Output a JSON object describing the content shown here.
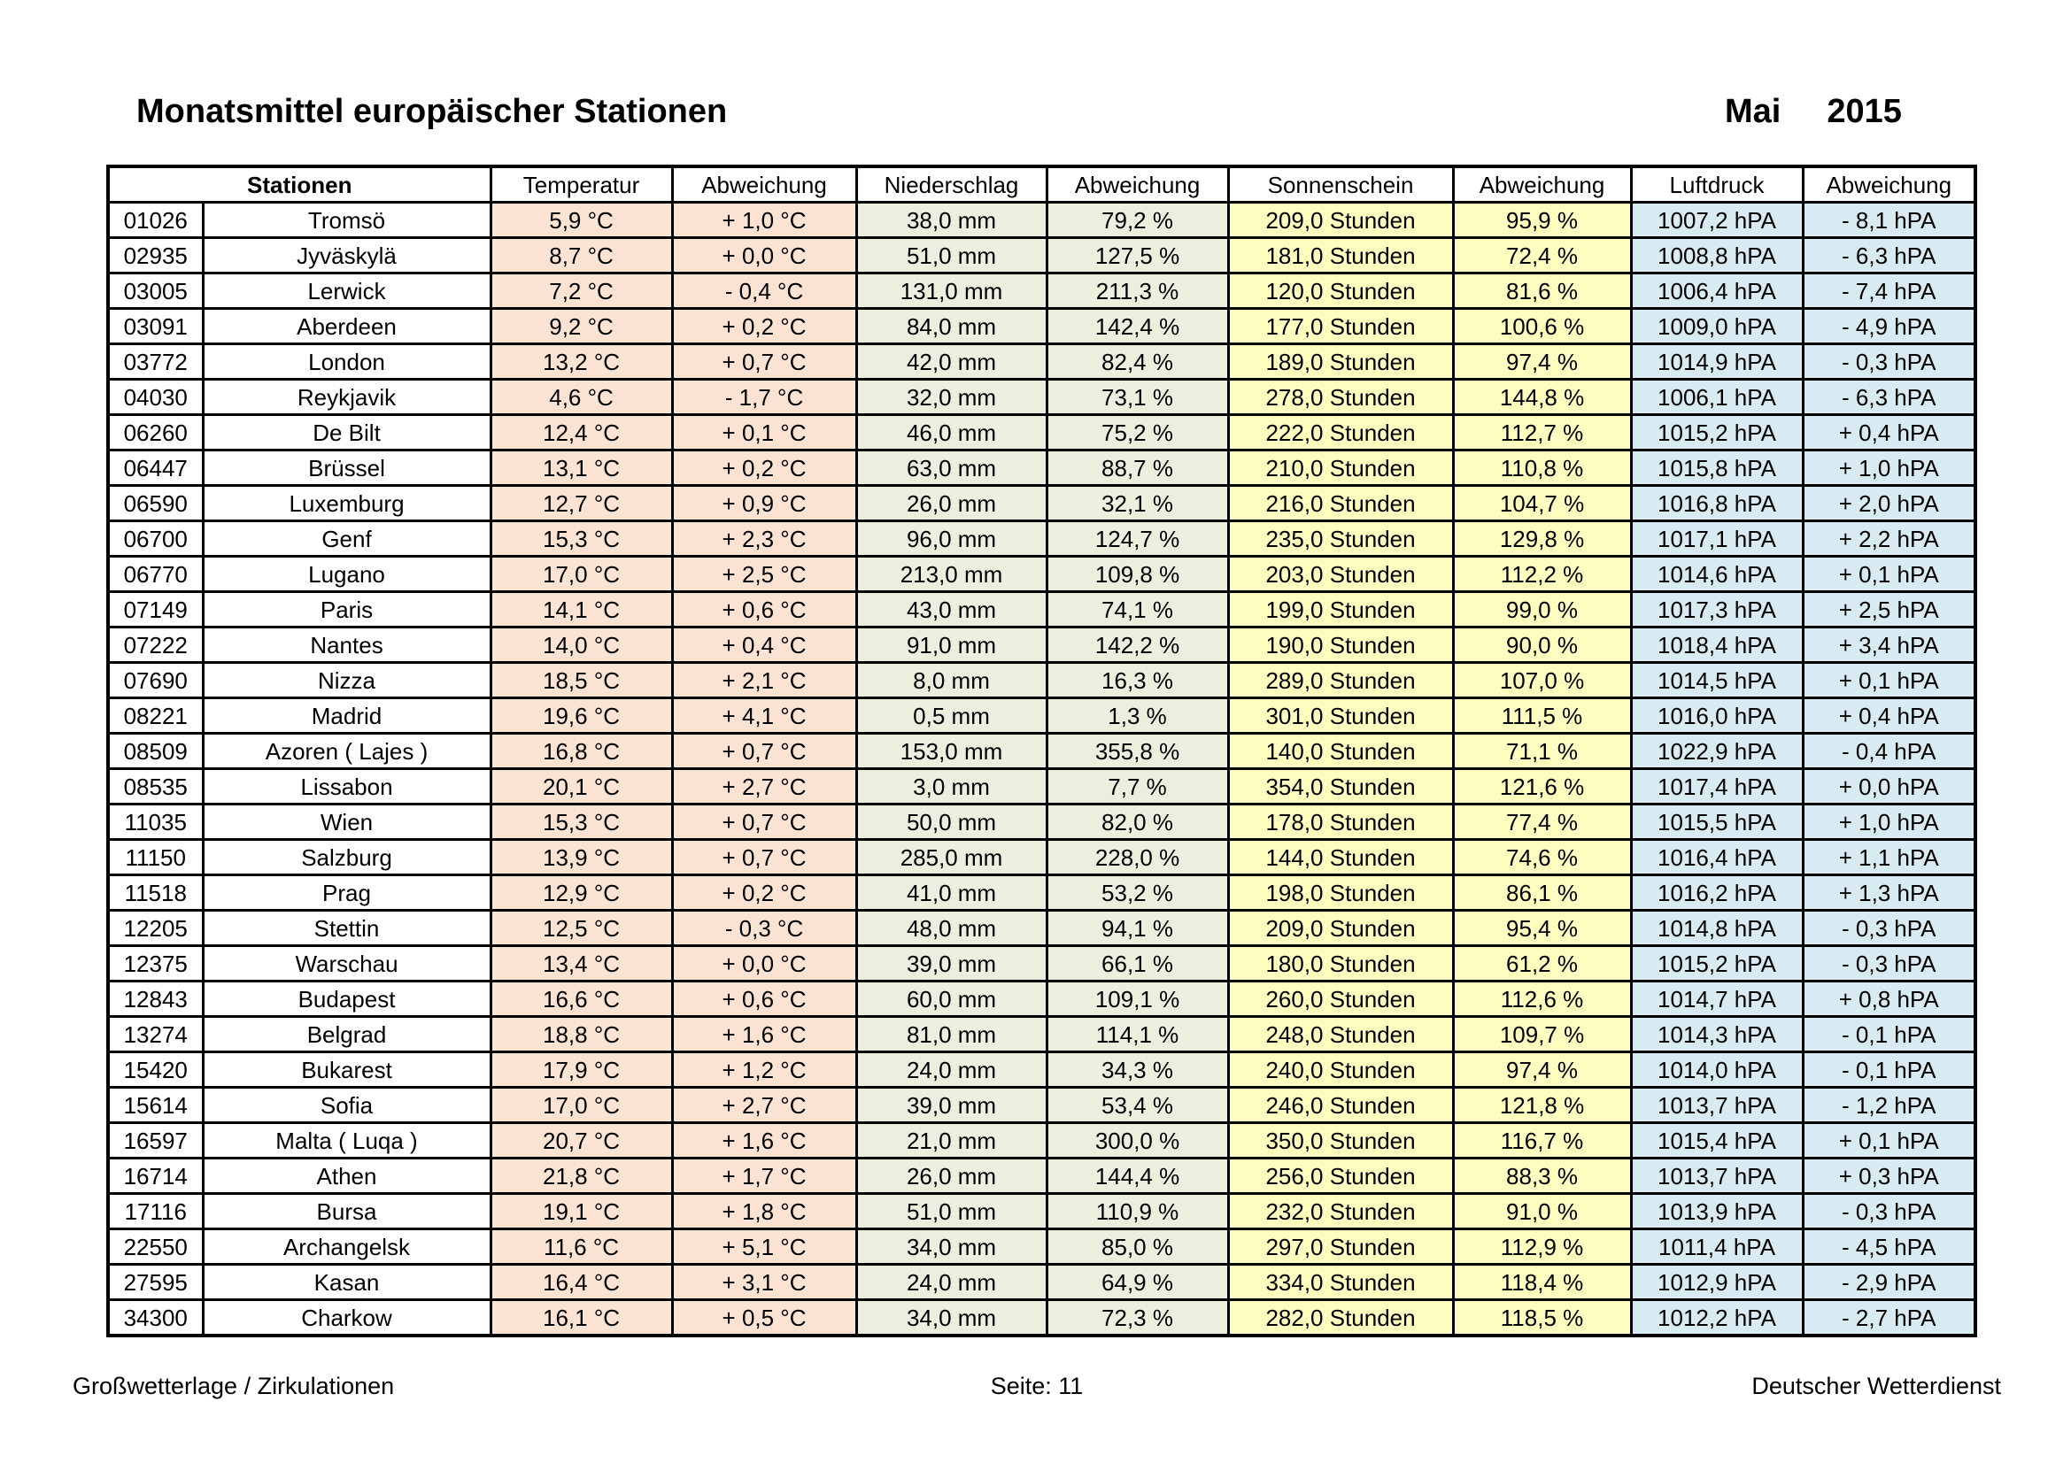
{
  "page": {
    "title": "Monatsmittel europäischer Stationen",
    "period": {
      "month": "Mai",
      "year": "2015"
    },
    "footer": {
      "left": "Großwetterlage / Zirkulationen",
      "center": "Seite: 11",
      "right": "Deutscher Wetterdienst"
    }
  },
  "table": {
    "headers": {
      "stations": "Stationen",
      "temperature": "Temperatur",
      "temperature_deviation": "Abweichung",
      "precipitation": "Niederschlag",
      "precipitation_deviation": "Abweichung",
      "sunshine": "Sonnenschein",
      "sunshine_deviation": "Abweichung",
      "pressure": "Luftdruck",
      "pressure_deviation": "Abweichung"
    },
    "colors": {
      "temperature_bg": "#fae3d3",
      "precipitation_bg": "#eaefde",
      "sunshine_bg": "#fdfdc0",
      "pressure_bg": "#d8eaf2"
    },
    "rows": [
      [
        "01026",
        "Tromsö",
        "5,9 °C",
        "+ 1,0 °C",
        "38,0 mm",
        "79,2 %",
        "209,0 Stunden",
        "95,9 %",
        "1007,2 hPA",
        "- 8,1 hPA"
      ],
      [
        "02935",
        "Jyväskylä",
        "8,7 °C",
        "+ 0,0 °C",
        "51,0 mm",
        "127,5 %",
        "181,0 Stunden",
        "72,4 %",
        "1008,8 hPA",
        "- 6,3 hPA"
      ],
      [
        "03005",
        "Lerwick",
        "7,2 °C",
        "- 0,4 °C",
        "131,0 mm",
        "211,3 %",
        "120,0 Stunden",
        "81,6 %",
        "1006,4 hPA",
        "- 7,4 hPA"
      ],
      [
        "03091",
        "Aberdeen",
        "9,2 °C",
        "+ 0,2 °C",
        "84,0 mm",
        "142,4 %",
        "177,0 Stunden",
        "100,6 %",
        "1009,0 hPA",
        "- 4,9 hPA"
      ],
      [
        "03772",
        "London",
        "13,2 °C",
        "+ 0,7 °C",
        "42,0 mm",
        "82,4 %",
        "189,0 Stunden",
        "97,4 %",
        "1014,9 hPA",
        "- 0,3 hPA"
      ],
      [
        "04030",
        "Reykjavik",
        "4,6 °C",
        "- 1,7 °C",
        "32,0 mm",
        "73,1 %",
        "278,0 Stunden",
        "144,8 %",
        "1006,1 hPA",
        "- 6,3 hPA"
      ],
      [
        "06260",
        "De Bilt",
        "12,4 °C",
        "+ 0,1 °C",
        "46,0 mm",
        "75,2 %",
        "222,0 Stunden",
        "112,7 %",
        "1015,2 hPA",
        "+ 0,4 hPA"
      ],
      [
        "06447",
        "Brüssel",
        "13,1 °C",
        "+ 0,2 °C",
        "63,0 mm",
        "88,7 %",
        "210,0 Stunden",
        "110,8 %",
        "1015,8 hPA",
        "+ 1,0 hPA"
      ],
      [
        "06590",
        "Luxemburg",
        "12,7 °C",
        "+ 0,9 °C",
        "26,0 mm",
        "32,1 %",
        "216,0 Stunden",
        "104,7 %",
        "1016,8 hPA",
        "+ 2,0 hPA"
      ],
      [
        "06700",
        "Genf",
        "15,3 °C",
        "+ 2,3 °C",
        "96,0 mm",
        "124,7 %",
        "235,0 Stunden",
        "129,8 %",
        "1017,1 hPA",
        "+ 2,2 hPA"
      ],
      [
        "06770",
        "Lugano",
        "17,0 °C",
        "+ 2,5 °C",
        "213,0 mm",
        "109,8 %",
        "203,0 Stunden",
        "112,2 %",
        "1014,6 hPA",
        "+ 0,1 hPA"
      ],
      [
        "07149",
        "Paris",
        "14,1 °C",
        "+ 0,6 °C",
        "43,0 mm",
        "74,1 %",
        "199,0 Stunden",
        "99,0 %",
        "1017,3 hPA",
        "+ 2,5 hPA"
      ],
      [
        "07222",
        "Nantes",
        "14,0 °C",
        "+ 0,4 °C",
        "91,0 mm",
        "142,2 %",
        "190,0 Stunden",
        "90,0 %",
        "1018,4 hPA",
        "+ 3,4 hPA"
      ],
      [
        "07690",
        "Nizza",
        "18,5 °C",
        "+ 2,1 °C",
        "8,0 mm",
        "16,3 %",
        "289,0 Stunden",
        "107,0 %",
        "1014,5 hPA",
        "+ 0,1 hPA"
      ],
      [
        "08221",
        "Madrid",
        "19,6 °C",
        "+ 4,1 °C",
        "0,5 mm",
        "1,3 %",
        "301,0 Stunden",
        "111,5 %",
        "1016,0 hPA",
        "+ 0,4 hPA"
      ],
      [
        "08509",
        "Azoren ( Lajes )",
        "16,8 °C",
        "+ 0,7 °C",
        "153,0 mm",
        "355,8 %",
        "140,0 Stunden",
        "71,1 %",
        "1022,9 hPA",
        "- 0,4 hPA"
      ],
      [
        "08535",
        "Lissabon",
        "20,1 °C",
        "+ 2,7 °C",
        "3,0 mm",
        "7,7 %",
        "354,0 Stunden",
        "121,6 %",
        "1017,4 hPA",
        "+ 0,0 hPA"
      ],
      [
        "11035",
        "Wien",
        "15,3 °C",
        "+ 0,7 °C",
        "50,0 mm",
        "82,0 %",
        "178,0 Stunden",
        "77,4 %",
        "1015,5 hPA",
        "+ 1,0 hPA"
      ],
      [
        "11150",
        "Salzburg",
        "13,9 °C",
        "+ 0,7 °C",
        "285,0 mm",
        "228,0 %",
        "144,0 Stunden",
        "74,6 %",
        "1016,4 hPA",
        "+ 1,1 hPA"
      ],
      [
        "11518",
        "Prag",
        "12,9 °C",
        "+ 0,2 °C",
        "41,0 mm",
        "53,2 %",
        "198,0 Stunden",
        "86,1 %",
        "1016,2 hPA",
        "+ 1,3 hPA"
      ],
      [
        "12205",
        "Stettin",
        "12,5 °C",
        "- 0,3 °C",
        "48,0 mm",
        "94,1 %",
        "209,0 Stunden",
        "95,4 %",
        "1014,8 hPA",
        "- 0,3 hPA"
      ],
      [
        "12375",
        "Warschau",
        "13,4 °C",
        "+ 0,0 °C",
        "39,0 mm",
        "66,1 %",
        "180,0 Stunden",
        "61,2 %",
        "1015,2 hPA",
        "- 0,3 hPA"
      ],
      [
        "12843",
        "Budapest",
        "16,6 °C",
        "+ 0,6 °C",
        "60,0 mm",
        "109,1 %",
        "260,0 Stunden",
        "112,6 %",
        "1014,7 hPA",
        "+ 0,8 hPA"
      ],
      [
        "13274",
        "Belgrad",
        "18,8 °C",
        "+ 1,6 °C",
        "81,0 mm",
        "114,1 %",
        "248,0 Stunden",
        "109,7 %",
        "1014,3 hPA",
        "- 0,1 hPA"
      ],
      [
        "15420",
        "Bukarest",
        "17,9 °C",
        "+ 1,2 °C",
        "24,0 mm",
        "34,3 %",
        "240,0 Stunden",
        "97,4 %",
        "1014,0 hPA",
        "- 0,1 hPA"
      ],
      [
        "15614",
        "Sofia",
        "17,0 °C",
        "+ 2,7 °C",
        "39,0 mm",
        "53,4 %",
        "246,0 Stunden",
        "121,8 %",
        "1013,7 hPA",
        "- 1,2 hPA"
      ],
      [
        "16597",
        "Malta ( Luqa )",
        "20,7 °C",
        "+ 1,6 °C",
        "21,0 mm",
        "300,0 %",
        "350,0 Stunden",
        "116,7 %",
        "1015,4 hPA",
        "+ 0,1 hPA"
      ],
      [
        "16714",
        "Athen",
        "21,8 °C",
        "+ 1,7 °C",
        "26,0 mm",
        "144,4 %",
        "256,0 Stunden",
        "88,3 %",
        "1013,7 hPA",
        "+ 0,3 hPA"
      ],
      [
        "17116",
        "Bursa",
        "19,1 °C",
        "+ 1,8 °C",
        "51,0 mm",
        "110,9 %",
        "232,0 Stunden",
        "91,0 %",
        "1013,9 hPA",
        "- 0,3 hPA"
      ],
      [
        "22550",
        "Archangelsk",
        "11,6 °C",
        "+ 5,1 °C",
        "34,0 mm",
        "85,0 %",
        "297,0 Stunden",
        "112,9 %",
        "1011,4 hPA",
        "- 4,5 hPA"
      ],
      [
        "27595",
        "Kasan",
        "16,4 °C",
        "+ 3,1 °C",
        "24,0 mm",
        "64,9 %",
        "334,0 Stunden",
        "118,4 %",
        "1012,9 hPA",
        "- 2,9 hPA"
      ],
      [
        "34300",
        "Charkow",
        "16,1 °C",
        "+ 0,5 °C",
        "34,0 mm",
        "72,3 %",
        "282,0 Stunden",
        "118,5 %",
        "1012,2 hPA",
        "- 2,7 hPA"
      ]
    ]
  }
}
